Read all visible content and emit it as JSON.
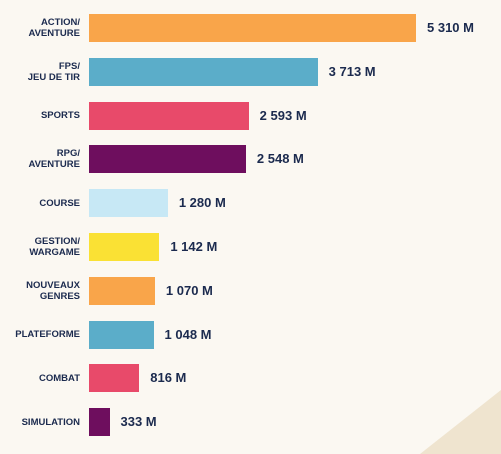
{
  "chart_data": {
    "type": "bar",
    "orientation": "horizontal",
    "categories": [
      "ACTION/\nAVENTURE",
      "FPS/\nJEU DE TIR",
      "SPORTS",
      "RPG/\nAVENTURE",
      "COURSE",
      "GESTION/\nWARGAME",
      "NOUVEAUX\nGENRES",
      "PLATEFORME",
      "COMBAT",
      "SIMULATION"
    ],
    "values": [
      5310,
      3713,
      2593,
      2548,
      1280,
      1142,
      1070,
      1048,
      816,
      333
    ],
    "value_labels": [
      "5 310 M",
      "3 713 M",
      "2 593 M",
      "2 548 M",
      "1 280 M",
      "1 142 M",
      "1 070 M",
      "1 048 M",
      "816 M",
      "333 M"
    ],
    "colors": [
      "#f9a54a",
      "#5badc9",
      "#e84a6a",
      "#6e0e5e",
      "#c7e8f5",
      "#fae134",
      "#f9a54a",
      "#5badc9",
      "#e84a6a",
      "#6e0e5e"
    ],
    "title": "",
    "xlabel": "",
    "ylabel": "",
    "grid": false,
    "legend": "none"
  }
}
